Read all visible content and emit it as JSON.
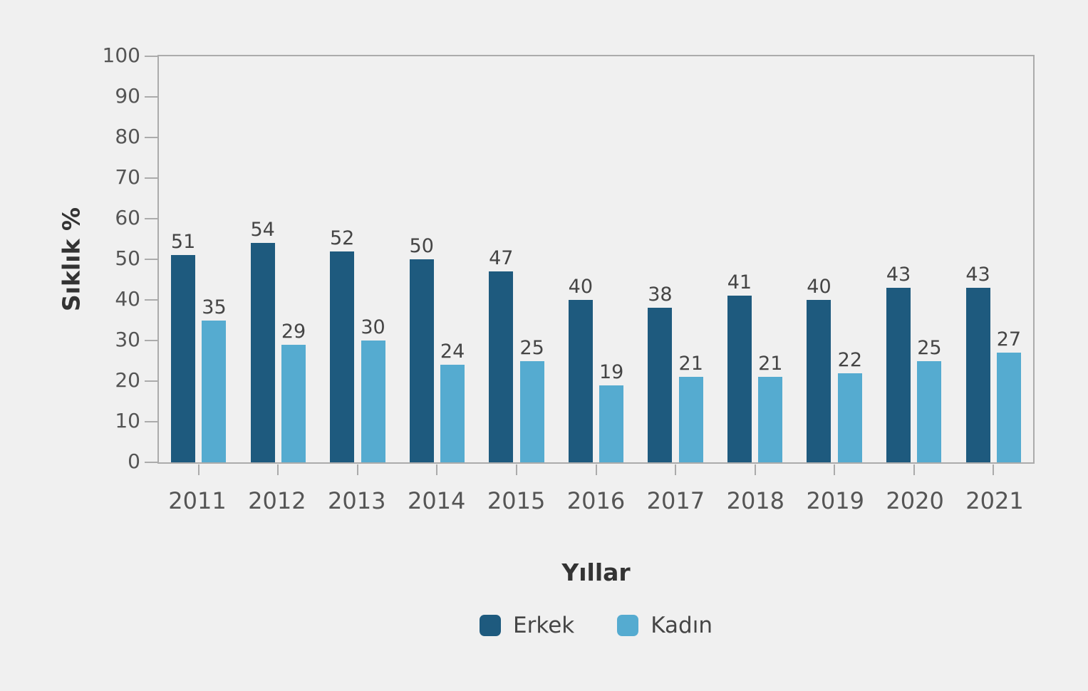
{
  "chart_data": {
    "type": "bar",
    "categories": [
      "2011",
      "2012",
      "2013",
      "2014",
      "2015",
      "2016",
      "2017",
      "2018",
      "2019",
      "2020",
      "2021"
    ],
    "series": [
      {
        "name": "Erkek",
        "color": "#1e5a7e",
        "values": [
          51,
          54,
          52,
          50,
          47,
          40,
          38,
          41,
          40,
          43,
          43
        ]
      },
      {
        "name": "Kadın",
        "color": "#55abd0",
        "values": [
          35,
          29,
          30,
          24,
          25,
          19,
          21,
          21,
          22,
          25,
          27
        ]
      }
    ],
    "title": "",
    "xlabel": "Yıllar",
    "ylabel": "Sıklık %",
    "ylim": [
      0,
      100
    ],
    "yticks": [
      0,
      10,
      20,
      30,
      40,
      50,
      60,
      70,
      80,
      90,
      100
    ],
    "bar_value_labels": true,
    "grid": false,
    "legend_position": "bottom",
    "colors": {
      "background": "#f0f0f0",
      "axis": "#ababab",
      "tick_label": "#555555",
      "value_label": "#454545",
      "title_text": "#333333"
    }
  }
}
